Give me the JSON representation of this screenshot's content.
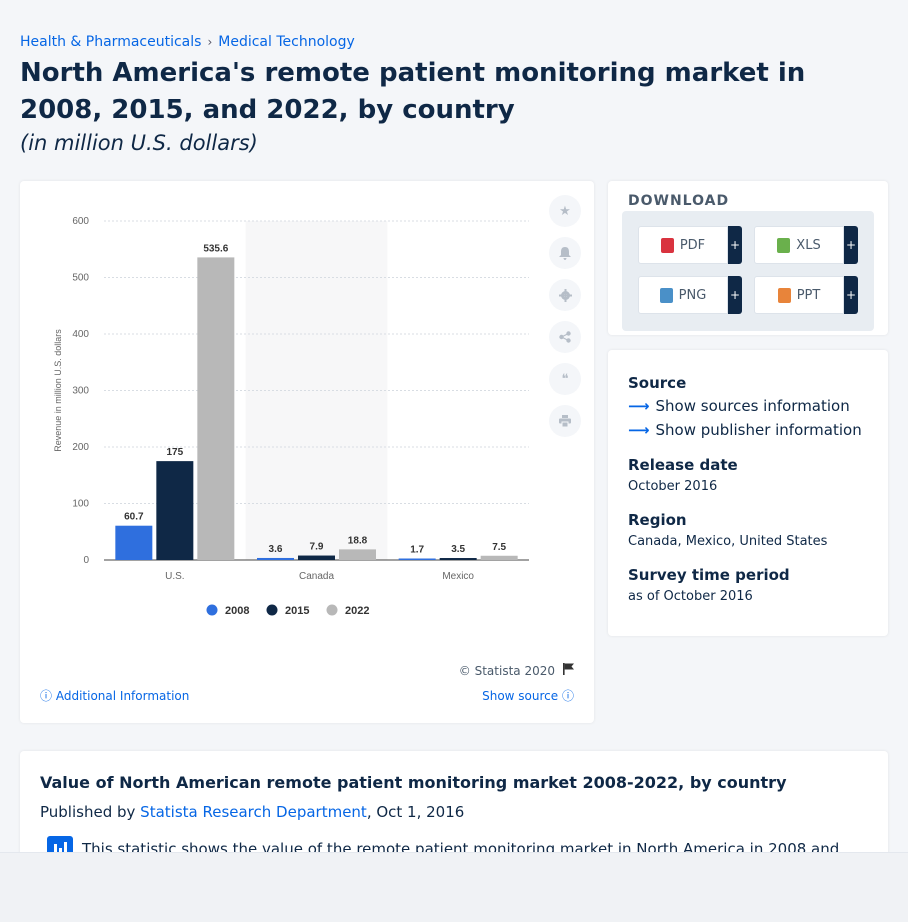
{
  "breadcrumb": {
    "item1": "Health & Pharmaceuticals",
    "sep": "›",
    "item2": "Medical Technology"
  },
  "title": "North America's remote patient monitoring market in 2008, 2015, and 2022, by country",
  "subtitle": "(in million U.S. dollars)",
  "chart_data": {
    "type": "bar",
    "categories": [
      "U.S.",
      "Canada",
      "Mexico"
    ],
    "series": [
      {
        "name": "2008",
        "values": [
          60.7,
          3.6,
          1.7
        ],
        "color": "#2f6fde"
      },
      {
        "name": "2015",
        "values": [
          175,
          7.9,
          3.5
        ],
        "color": "#0f2846"
      },
      {
        "name": "2022",
        "values": [
          535.6,
          18.8,
          7.5
        ],
        "color": "#b8b8b8"
      }
    ],
    "value_labels": [
      [
        "60.7",
        "175",
        "535.6"
      ],
      [
        "3.6",
        "7.9",
        "18.8"
      ],
      [
        "1.7",
        "3.5",
        "7.5"
      ]
    ],
    "ylabel": "Revenue in million U.S. dollars",
    "ylim": [
      0,
      600
    ],
    "yticks": [
      "0",
      "100",
      "200",
      "300",
      "400",
      "500",
      "600"
    ],
    "grid": true,
    "legend": "bottom-center",
    "highlighted_category": "Canada"
  },
  "chart_footer": {
    "copyright": "© Statista 2020",
    "additional_info": "Additional Information",
    "show_source": "Show source"
  },
  "toolbar_icons": [
    "star-icon",
    "bell-icon",
    "gear-icon",
    "share-icon",
    "quote-icon",
    "print-icon"
  ],
  "download": {
    "title": "DOWNLOAD",
    "buttons": [
      {
        "label": "PDF",
        "icon": "pdf-file-icon",
        "color": "#d9333f"
      },
      {
        "label": "XLS",
        "icon": "xls-file-icon",
        "color": "#6ab04c"
      },
      {
        "label": "PNG",
        "icon": "png-file-icon",
        "color": "#4a90c8"
      },
      {
        "label": "PPT",
        "icon": "ppt-file-icon",
        "color": "#e8843a"
      }
    ],
    "plus": "+"
  },
  "info": {
    "source_head": "Source",
    "sources_link": "Show sources information",
    "publisher_link": "Show publisher information",
    "release_head": "Release date",
    "release_val": "October 2016",
    "region_head": "Region",
    "region_val": "Canada, Mexico, United States",
    "survey_head": "Survey time period",
    "survey_val": "as of October 2016"
  },
  "description": {
    "title": "Value of North American remote patient monitoring market 2008-2022, by country",
    "published_prefix": "Published by",
    "publisher": "Statista Research Department",
    "date": ", Oct 1, 2016",
    "text": "This statistic shows the value of the remote patient monitoring market in North America in 2008 and"
  },
  "colors": {
    "accent": "#0666e5",
    "dark": "#0f2846"
  }
}
